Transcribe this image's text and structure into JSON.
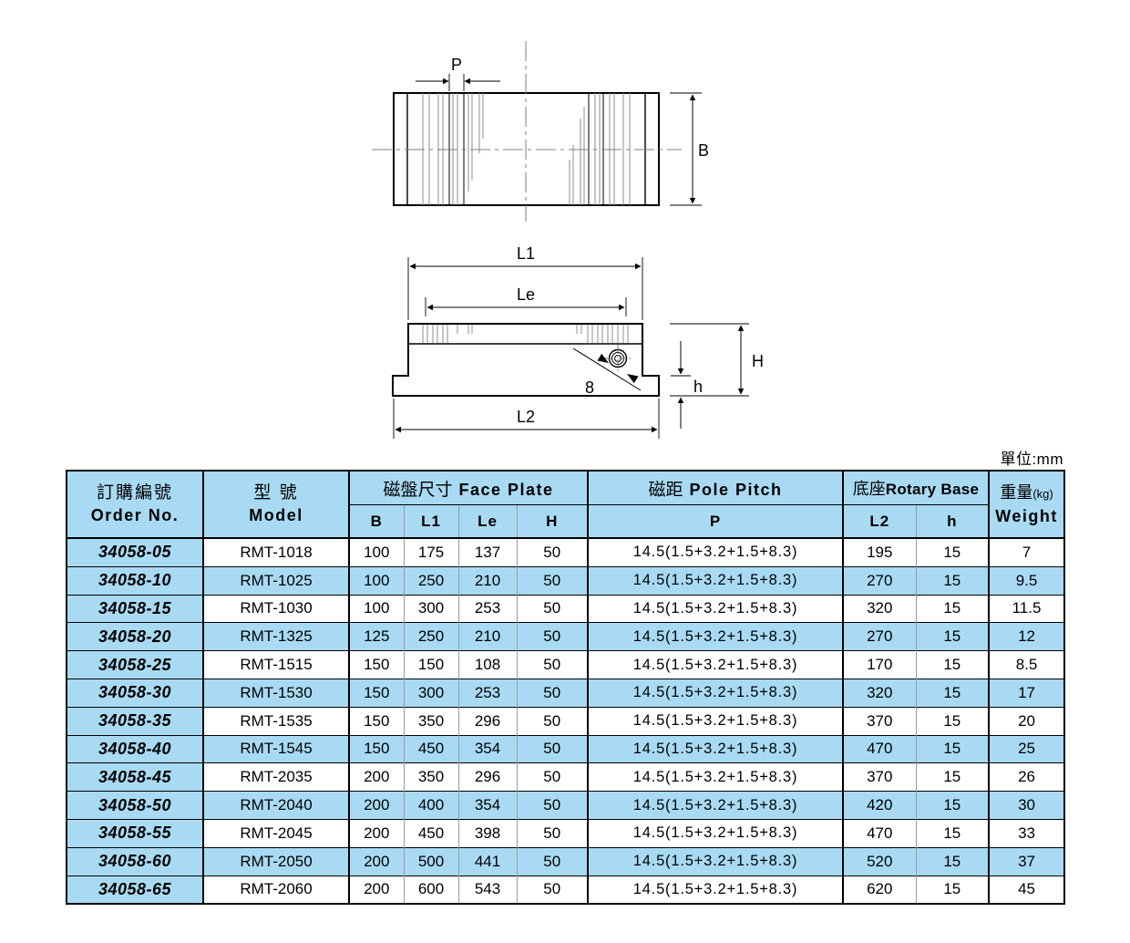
{
  "colors": {
    "accent": "#a9daf3",
    "thin_divider": "#9a9a9a"
  },
  "unit_label": "單位:mm",
  "drawing": {
    "labels": {
      "p": "P",
      "b": "B",
      "l1": "L1",
      "le": "Le",
      "l2": "L2",
      "H": "H",
      "h": "h",
      "knob": "8"
    }
  },
  "table": {
    "header": {
      "order_zh": "訂購編號",
      "order_en": "Order No.",
      "model_zh": "型 號",
      "model_en": "Model",
      "faceplate_zh": "磁盤尺寸",
      "faceplate_en": "Face Plate",
      "polepitch_zh": "磁距",
      "polepitch_en": "Pole Pitch",
      "rotary_zh": "底座",
      "rotary_en": "Rotary Base",
      "weight_zh": "重量",
      "weight_kg": "(kg)",
      "weight_en": "Weight",
      "sub": {
        "b": "B",
        "l1": "L1",
        "le": "Le",
        "H": "H",
        "p": "P",
        "l2": "L2",
        "h": "h"
      }
    },
    "rows": [
      [
        "34058-05",
        "RMT-1018",
        "100",
        "175",
        "137",
        "50",
        "14.5(1.5+3.2+1.5+8.3)",
        "195",
        "15",
        "7"
      ],
      [
        "34058-10",
        "RMT-1025",
        "100",
        "250",
        "210",
        "50",
        "14.5(1.5+3.2+1.5+8.3)",
        "270",
        "15",
        "9.5"
      ],
      [
        "34058-15",
        "RMT-1030",
        "100",
        "300",
        "253",
        "50",
        "14.5(1.5+3.2+1.5+8.3)",
        "320",
        "15",
        "11.5"
      ],
      [
        "34058-20",
        "RMT-1325",
        "125",
        "250",
        "210",
        "50",
        "14.5(1.5+3.2+1.5+8.3)",
        "270",
        "15",
        "12"
      ],
      [
        "34058-25",
        "RMT-1515",
        "150",
        "150",
        "108",
        "50",
        "14.5(1.5+3.2+1.5+8.3)",
        "170",
        "15",
        "8.5"
      ],
      [
        "34058-30",
        "RMT-1530",
        "150",
        "300",
        "253",
        "50",
        "14.5(1.5+3.2+1.5+8.3)",
        "320",
        "15",
        "17"
      ],
      [
        "34058-35",
        "RMT-1535",
        "150",
        "350",
        "296",
        "50",
        "14.5(1.5+3.2+1.5+8.3)",
        "370",
        "15",
        "20"
      ],
      [
        "34058-40",
        "RMT-1545",
        "150",
        "450",
        "354",
        "50",
        "14.5(1.5+3.2+1.5+8.3)",
        "470",
        "15",
        "25"
      ],
      [
        "34058-45",
        "RMT-2035",
        "200",
        "350",
        "296",
        "50",
        "14.5(1.5+3.2+1.5+8.3)",
        "370",
        "15",
        "26"
      ],
      [
        "34058-50",
        "RMT-2040",
        "200",
        "400",
        "354",
        "50",
        "14.5(1.5+3.2+1.5+8.3)",
        "420",
        "15",
        "30"
      ],
      [
        "34058-55",
        "RMT-2045",
        "200",
        "450",
        "398",
        "50",
        "14.5(1.5+3.2+1.5+8.3)",
        "470",
        "15",
        "33"
      ],
      [
        "34058-60",
        "RMT-2050",
        "200",
        "500",
        "441",
        "50",
        "14.5(1.5+3.2+1.5+8.3)",
        "520",
        "15",
        "37"
      ],
      [
        "34058-65",
        "RMT-2060",
        "200",
        "600",
        "543",
        "50",
        "14.5(1.5+3.2+1.5+8.3)",
        "620",
        "15",
        "45"
      ]
    ]
  }
}
